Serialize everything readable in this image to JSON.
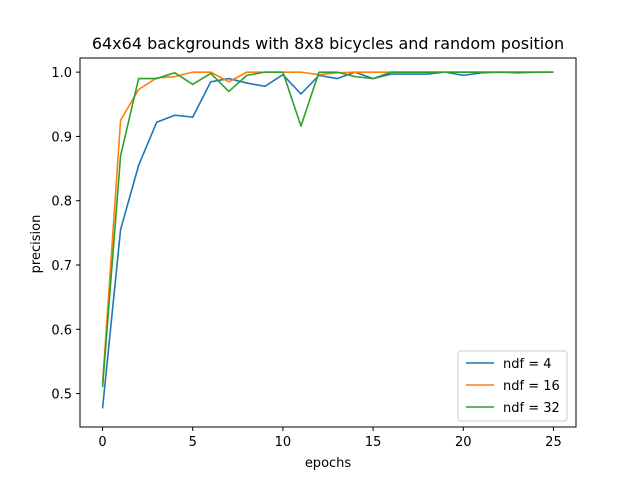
{
  "chart_data": {
    "type": "line",
    "title": "64x64 backgrounds with 8x8 bicycles and random position",
    "xlabel": "epochs",
    "ylabel": "precision",
    "xlim": [
      -1.25,
      26.25
    ],
    "ylim": [
      0.448,
      1.022
    ],
    "xticks": [
      0,
      5,
      10,
      15,
      20,
      25
    ],
    "yticks": [
      0.5,
      0.6,
      0.7,
      0.8,
      0.9,
      1.0
    ],
    "xtick_labels": [
      "0",
      "5",
      "10",
      "15",
      "20",
      "25"
    ],
    "ytick_labels": [
      "0.5",
      "0.6",
      "0.7",
      "0.8",
      "0.9",
      "1.0"
    ],
    "legend_position": "lower-right",
    "grid": false,
    "x": [
      0,
      1,
      2,
      3,
      4,
      5,
      6,
      7,
      8,
      9,
      10,
      11,
      12,
      13,
      14,
      15,
      16,
      17,
      18,
      19,
      20,
      21,
      22,
      23,
      24,
      25
    ],
    "series": [
      {
        "name": "ndf = 4",
        "color": "#1f77b4",
        "values": [
          0.477,
          0.755,
          0.855,
          0.922,
          0.933,
          0.93,
          0.985,
          0.99,
          0.983,
          0.978,
          0.996,
          0.966,
          0.995,
          0.99,
          1.0,
          0.99,
          0.997,
          0.997,
          0.997,
          1.0,
          0.995,
          0.999,
          1.0,
          0.999,
          1.0,
          1.0
        ]
      },
      {
        "name": "ndf = 16",
        "color": "#ff7f0e",
        "values": [
          0.515,
          0.925,
          0.973,
          0.991,
          0.993,
          1.0,
          1.0,
          0.985,
          1.0,
          1.0,
          1.0,
          1.0,
          0.996,
          0.999,
          1.0,
          1.0,
          1.0,
          1.0,
          1.0,
          1.0,
          1.0,
          1.0,
          1.0,
          1.0,
          1.0,
          1.0
        ]
      },
      {
        "name": "ndf = 32",
        "color": "#2ca02c",
        "values": [
          0.51,
          0.87,
          0.99,
          0.99,
          0.999,
          0.981,
          0.998,
          0.97,
          0.995,
          1.0,
          1.0,
          0.916,
          1.0,
          1.0,
          0.993,
          0.99,
          1.0,
          1.0,
          1.0,
          1.0,
          1.0,
          1.0,
          1.0,
          1.0,
          1.0,
          1.0
        ]
      }
    ]
  }
}
